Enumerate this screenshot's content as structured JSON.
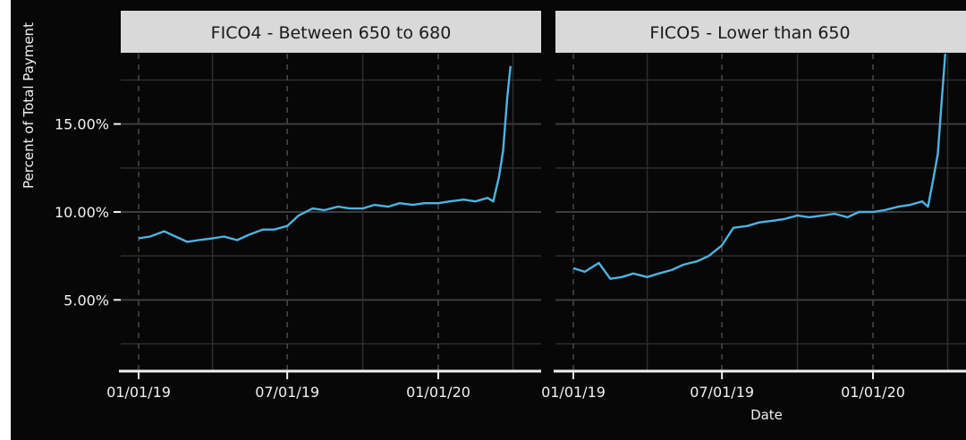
{
  "chart_data": {
    "type": "line",
    "xlabel": "Date",
    "ylabel": "Percent of Total Payment",
    "y_ticks": [
      "5.00%",
      "10.00%",
      "15.00%"
    ],
    "x_ticks": [
      "01/01/19",
      "07/01/19",
      "01/01/20"
    ],
    "ylim": [
      1,
      19
    ],
    "grid": true,
    "line_color": "#4eb3e0",
    "background": "#070707",
    "strip_color": "#d9d9d9",
    "panels": [
      {
        "title": "FICO4 - Between 650 to 680",
        "series": [
          {
            "x": [
              "2019-01-01",
              "2019-01-15",
              "2019-02-01",
              "2019-02-15",
              "2019-03-01",
              "2019-03-15",
              "2019-04-01",
              "2019-04-15",
              "2019-05-01",
              "2019-05-15",
              "2019-06-01",
              "2019-06-15",
              "2019-07-01",
              "2019-07-15",
              "2019-08-01",
              "2019-08-15",
              "2019-09-01",
              "2019-09-15",
              "2019-10-01",
              "2019-10-15",
              "2019-11-01",
              "2019-11-15",
              "2019-12-01",
              "2019-12-15",
              "2020-01-01",
              "2020-01-15",
              "2020-02-01",
              "2020-02-15",
              "2020-03-01",
              "2020-03-08",
              "2020-03-15",
              "2020-03-20",
              "2020-03-25",
              "2020-03-29"
            ],
            "values": [
              8.5,
              8.6,
              8.9,
              8.6,
              8.3,
              8.4,
              8.5,
              8.6,
              8.4,
              8.7,
              9.0,
              9.0,
              9.2,
              9.8,
              10.2,
              10.1,
              10.3,
              10.2,
              10.2,
              10.4,
              10.3,
              10.5,
              10.4,
              10.5,
              10.5,
              10.6,
              10.7,
              10.6,
              10.8,
              10.6,
              12.0,
              13.5,
              16.5,
              18.3
            ]
          }
        ]
      },
      {
        "title": "FICO5 - Lower than 650",
        "series": [
          {
            "x": [
              "2019-01-01",
              "2019-01-15",
              "2019-02-01",
              "2019-02-15",
              "2019-03-01",
              "2019-03-15",
              "2019-04-01",
              "2019-04-15",
              "2019-05-01",
              "2019-05-15",
              "2019-06-01",
              "2019-06-15",
              "2019-07-01",
              "2019-07-15",
              "2019-08-01",
              "2019-08-15",
              "2019-09-01",
              "2019-09-15",
              "2019-10-01",
              "2019-10-15",
              "2019-11-01",
              "2019-11-15",
              "2019-12-01",
              "2019-12-15",
              "2020-01-01",
              "2020-01-15",
              "2020-02-01",
              "2020-02-15",
              "2020-03-01",
              "2020-03-08",
              "2020-03-15",
              "2020-03-20",
              "2020-03-25",
              "2020-03-29"
            ],
            "values": [
              6.8,
              6.6,
              7.1,
              6.2,
              6.3,
              6.5,
              6.3,
              6.5,
              6.7,
              7.0,
              7.2,
              7.5,
              8.1,
              9.1,
              9.2,
              9.4,
              9.5,
              9.6,
              9.8,
              9.7,
              9.8,
              9.9,
              9.7,
              10.0,
              10.0,
              10.1,
              10.3,
              10.4,
              10.6,
              10.3,
              12.0,
              13.3,
              16.5,
              19.0
            ]
          }
        ]
      }
    ]
  }
}
